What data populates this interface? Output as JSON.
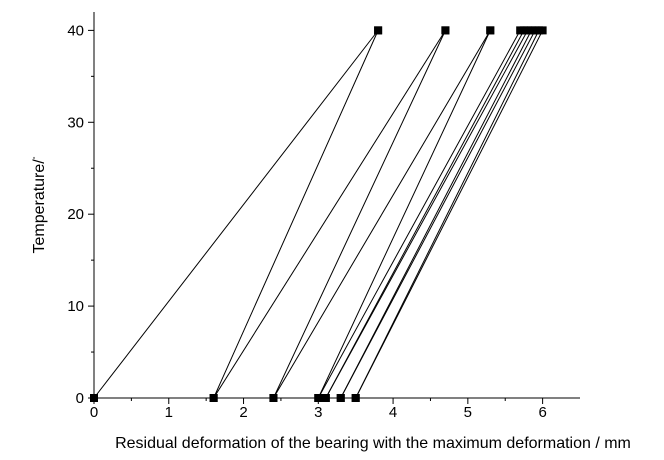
{
  "chart_data": {
    "type": "line",
    "title": "",
    "xlabel": "Residual deformation of the bearing with the maximum deformation / mm",
    "ylabel": "Temperature/",
    "ylabel_symbol": "°",
    "xlim": [
      0,
      6.5
    ],
    "ylim": [
      0,
      42
    ],
    "xticks": [
      0,
      1,
      2,
      3,
      4,
      5,
      6
    ],
    "xtick_labels": [
      "0",
      "1",
      "2",
      "3",
      "4",
      "5",
      "6"
    ],
    "yticks": [
      0,
      10,
      20,
      30,
      40
    ],
    "ytick_labels": [
      "0",
      "10",
      "20",
      "30",
      "40"
    ],
    "grid": false,
    "legend": "none",
    "marker": "square",
    "color": "#000000",
    "series": [
      {
        "x": [
          0,
          3.8
        ],
        "y": [
          0,
          40
        ]
      },
      {
        "x": [
          1.6,
          3.8
        ],
        "y": [
          0,
          40
        ]
      },
      {
        "x": [
          1.6,
          4.7
        ],
        "y": [
          0,
          40
        ]
      },
      {
        "x": [
          2.4,
          4.7
        ],
        "y": [
          0,
          40
        ]
      },
      {
        "x": [
          2.4,
          5.3
        ],
        "y": [
          0,
          40
        ]
      },
      {
        "x": [
          3.0,
          5.3
        ],
        "y": [
          0,
          40
        ]
      },
      {
        "x": [
          3.0,
          5.7
        ],
        "y": [
          0,
          40
        ]
      },
      {
        "x": [
          3.1,
          5.75
        ],
        "y": [
          0,
          40
        ]
      },
      {
        "x": [
          3.1,
          5.8
        ],
        "y": [
          0,
          40
        ]
      },
      {
        "x": [
          3.3,
          5.85
        ],
        "y": [
          0,
          40
        ]
      },
      {
        "x": [
          3.3,
          5.9
        ],
        "y": [
          0,
          40
        ]
      },
      {
        "x": [
          3.5,
          6.0
        ],
        "y": [
          0,
          40
        ]
      },
      {
        "x": [
          3.5,
          5.95
        ],
        "y": [
          0,
          40
        ]
      }
    ]
  }
}
